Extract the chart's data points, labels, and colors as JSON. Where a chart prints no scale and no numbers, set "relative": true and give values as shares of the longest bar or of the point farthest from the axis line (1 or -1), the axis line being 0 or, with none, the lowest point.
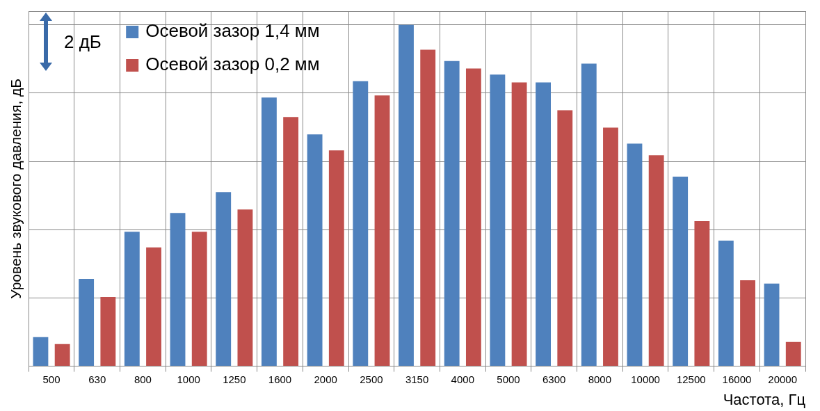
{
  "chart_data": {
    "type": "bar",
    "relative": true,
    "ylabel": "Уровень звукового давления, дБ",
    "xlabel": "Частота, Гц",
    "categories": [
      "500",
      "630",
      "800",
      "1000",
      "1250",
      "1600",
      "2000",
      "2500",
      "3150",
      "4000",
      "5000",
      "6300",
      "8000",
      "10000",
      "12500",
      "16000",
      "20000"
    ],
    "series": [
      {
        "name": "Осевой зазор 1,4 мм",
        "color": "#4f81bd",
        "values": [
          0.085,
          0.256,
          0.394,
          0.449,
          0.51,
          0.787,
          0.679,
          0.835,
          1,
          0.894,
          0.854,
          0.831,
          0.886,
          0.652,
          0.555,
          0.368,
          0.242
        ]
      },
      {
        "name": "Осевой зазор 0,2 мм",
        "color": "#c0504d",
        "values": [
          0.065,
          0.203,
          0.348,
          0.394,
          0.459,
          0.73,
          0.632,
          0.793,
          0.927,
          0.872,
          0.831,
          0.75,
          0.699,
          0.618,
          0.425,
          0.252,
          0.071
        ]
      }
    ],
    "annotations": [
      "2 дБ"
    ],
    "grid": true,
    "legend": "top left"
  }
}
